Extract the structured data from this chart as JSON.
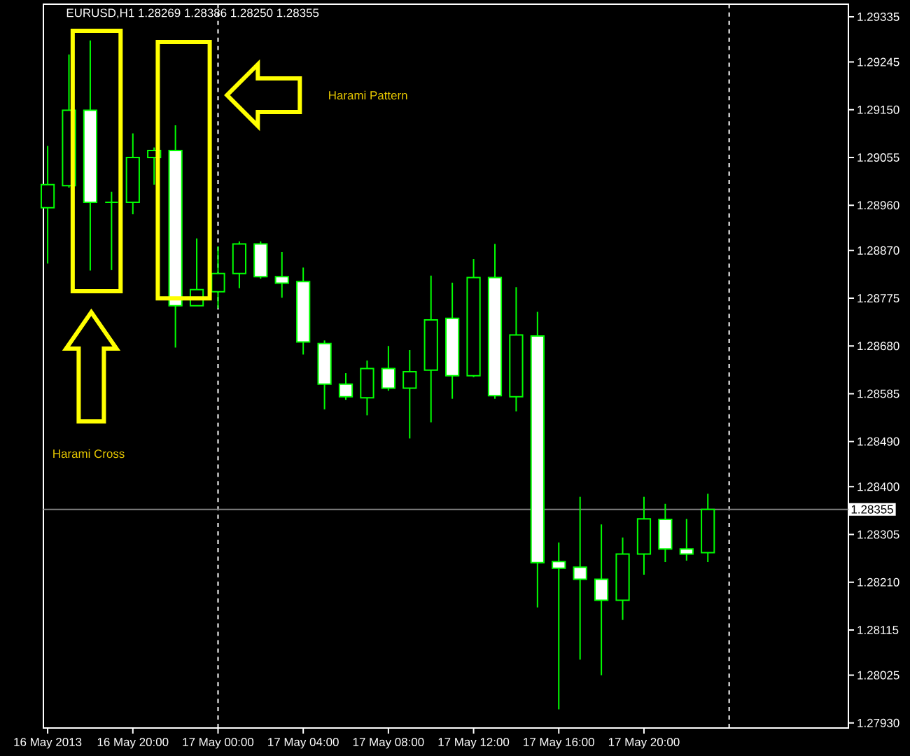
{
  "chart_data": {
    "type": "candlestick",
    "title": "EURUSD,H1 1.28269 1.28386 1.28250 1.28355",
    "color": "#00ff00",
    "x": [
      "2013-05-16T16:00",
      "2013-05-16T17:00",
      "2013-05-16T18:00",
      "2013-05-16T19:00",
      "2013-05-16T20:00",
      "2013-05-16T21:00",
      "2013-05-16T22:00",
      "2013-05-16T23:00",
      "2013-05-17T00:00",
      "2013-05-17T01:00",
      "2013-05-17T02:00",
      "2013-05-17T03:00",
      "2013-05-17T04:00",
      "2013-05-17T05:00",
      "2013-05-17T06:00",
      "2013-05-17T07:00",
      "2013-05-17T08:00",
      "2013-05-17T09:00",
      "2013-05-17T10:00",
      "2013-05-17T11:00",
      "2013-05-17T12:00",
      "2013-05-17T13:00",
      "2013-05-17T14:00",
      "2013-05-17T15:00",
      "2013-05-17T16:00",
      "2013-05-17T17:00",
      "2013-05-17T18:00",
      "2013-05-17T19:00",
      "2013-05-17T20:00",
      "2013-05-17T21:00",
      "2013-05-17T22:00",
      "2013-05-17T23:00"
    ],
    "ohlc": [
      [
        1.28955,
        1.29078,
        1.28844,
        1.29001
      ],
      [
        1.28999,
        1.2926,
        1.28995,
        1.29149
      ],
      [
        1.29149,
        1.29288,
        1.2883,
        1.28966
      ],
      [
        1.28966,
        1.28987,
        1.28831,
        1.28966
      ],
      [
        1.28966,
        1.29103,
        1.28942,
        1.29055
      ],
      [
        1.29055,
        1.29075,
        1.29001,
        1.29069
      ],
      [
        1.29069,
        1.29119,
        1.28677,
        1.2876
      ],
      [
        1.2876,
        1.28894,
        1.2876,
        1.28792
      ],
      [
        1.28788,
        1.28878,
        1.28755,
        1.28824
      ],
      [
        1.28824,
        1.28888,
        1.28795,
        1.28883
      ],
      [
        1.28883,
        1.28888,
        1.28814,
        1.28818
      ],
      [
        1.28818,
        1.28867,
        1.28776,
        1.28805
      ],
      [
        1.28808,
        1.28836,
        1.28663,
        1.28688
      ],
      [
        1.28685,
        1.28691,
        1.28554,
        1.28604
      ],
      [
        1.28604,
        1.28626,
        1.28573,
        1.28579
      ],
      [
        1.28577,
        1.28651,
        1.28542,
        1.28635
      ],
      [
        1.28635,
        1.2868,
        1.28591,
        1.28596
      ],
      [
        1.28596,
        1.28672,
        1.28496,
        1.28629
      ],
      [
        1.28632,
        1.2882,
        1.28528,
        1.28732
      ],
      [
        1.28735,
        1.28806,
        1.28575,
        1.28621
      ],
      [
        1.28621,
        1.28853,
        1.28618,
        1.28816
      ],
      [
        1.28816,
        1.28883,
        1.28575,
        1.28581
      ],
      [
        1.28579,
        1.28797,
        1.2855,
        1.28702
      ],
      [
        1.287,
        1.28748,
        1.2816,
        1.28249
      ],
      [
        1.28251,
        1.28289,
        1.27957,
        1.28238
      ],
      [
        1.2824,
        1.2838,
        1.28056,
        1.28216
      ],
      [
        1.28216,
        1.28325,
        1.28025,
        1.28174
      ],
      [
        1.28174,
        1.28299,
        1.28135,
        1.28266
      ],
      [
        1.28266,
        1.2838,
        1.28225,
        1.28336
      ],
      [
        1.28335,
        1.28366,
        1.2825,
        1.28276
      ],
      [
        1.28276,
        1.28336,
        1.28253,
        1.28266
      ],
      [
        1.28269,
        1.28386,
        1.2825,
        1.28355
      ]
    ],
    "colors": [
      "#000000",
      "#000000",
      "#ffffff",
      "#00ff00",
      "#000000",
      "#000000",
      "#ffffff",
      "#000000",
      "#000000",
      "#000000",
      "#ffffff",
      "#ffffff",
      "#ffffff",
      "#ffffff",
      "#ffffff",
      "#000000",
      "#ffffff",
      "#000000",
      "#000000",
      "#ffffff",
      "#000000",
      "#ffffff",
      "#000000",
      "#ffffff",
      "#ffffff",
      "#ffffff",
      "#ffffff",
      "#000000",
      "#000000",
      "#ffffff",
      "#ffffff",
      "#000000"
    ],
    "xlim": [
      "2013-05-16T15:48",
      "2013-05-18T05:36"
    ],
    "xticks": [
      {
        "value": "2013-05-16T16:00",
        "label": "16 May 2013"
      },
      {
        "value": "2013-05-16T20:00",
        "label": "16 May 20:00"
      },
      {
        "value": "2013-05-17T00:00",
        "label": "17 May 00:00"
      },
      {
        "value": "2013-05-17T04:00",
        "label": "17 May 04:00"
      },
      {
        "value": "2013-05-17T08:00",
        "label": "17 May 08:00"
      },
      {
        "value": "2013-05-17T12:00",
        "label": "17 May 12:00"
      },
      {
        "value": "2013-05-17T16:00",
        "label": "17 May 16:00"
      },
      {
        "value": "2013-05-17T20:00",
        "label": "17 May 20:00"
      }
    ],
    "ylim": [
      1.2792,
      1.2936
    ],
    "yticks": [
      1.29335,
      1.29245,
      {
        "value": 1.2915,
        "label": "1.29150"
      },
      1.29055,
      {
        "value": 1.2896,
        "label": "1.28960"
      },
      {
        "value": 1.2887,
        "label": "1.28870"
      },
      1.28775,
      {
        "value": 1.2868,
        "label": "1.28680"
      },
      1.28585,
      {
        "value": 1.2849,
        "label": "1.28490"
      },
      {
        "value": 1.284,
        "label": "1.28400"
      },
      1.28305,
      {
        "value": 1.2821,
        "label": "1.28210"
      },
      1.28115,
      1.28025,
      {
        "value": 1.2793,
        "label": "1.27930"
      }
    ],
    "ref_lines": [
      {
        "axis": "x",
        "value": "2013-05-17T00:00",
        "color": "#ffffff",
        "line_style": "dashed"
      },
      {
        "axis": "x",
        "value": "2013-05-18T00:00",
        "color": "#ffffff",
        "line_style": "dashed"
      },
      {
        "axis": "y",
        "value": 1.28355,
        "label": "1.28355",
        "color": "#808080",
        "line_style": "solid"
      }
    ],
    "annotations": [
      "Harami Pattern",
      "Harami Cross"
    ]
  }
}
